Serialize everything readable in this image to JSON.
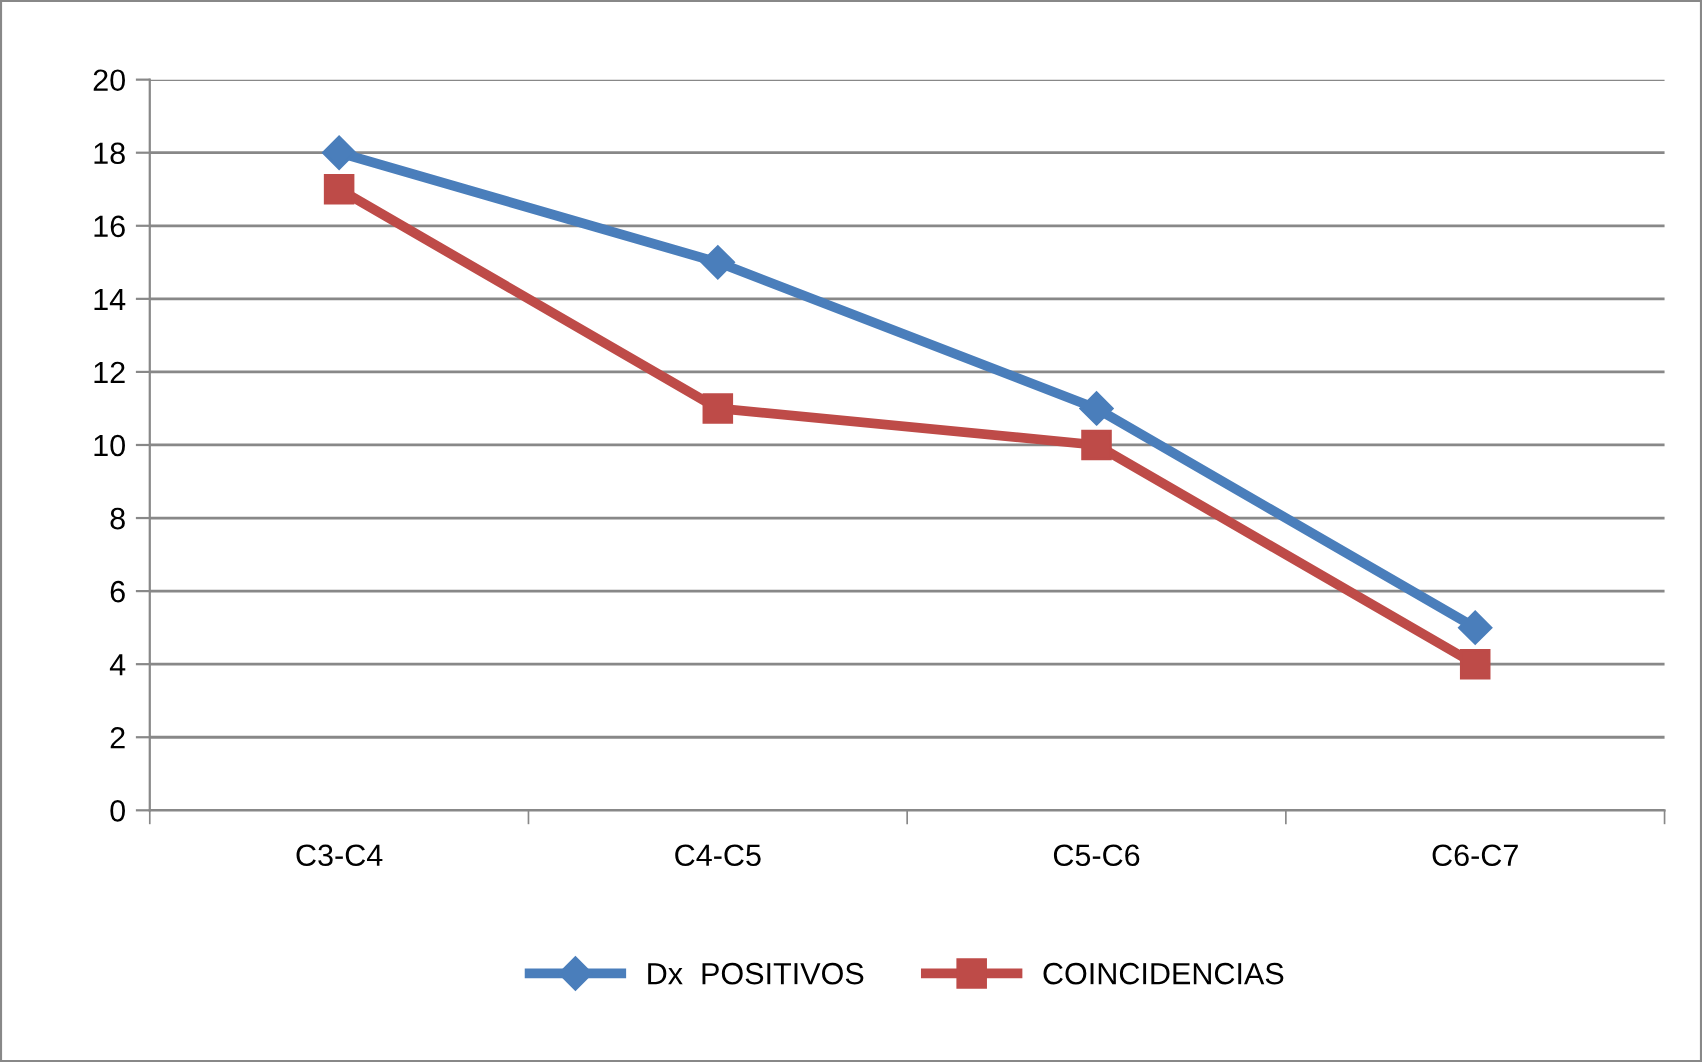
{
  "chart_data": {
    "type": "line",
    "categories": [
      "C3-C4",
      "C4-C5",
      "C5-C6",
      "C6-C7"
    ],
    "series": [
      {
        "name": "Dx  POSITIVOS",
        "color": "#4a7ebb",
        "marker": "diamond",
        "values": [
          18,
          15,
          11,
          5
        ]
      },
      {
        "name": "COINCIDENCIAS",
        "color": "#be4b48",
        "marker": "square",
        "values": [
          17,
          11,
          10,
          4
        ]
      }
    ],
    "ylim": [
      0,
      20
    ],
    "yticks": [
      0,
      2,
      4,
      6,
      8,
      10,
      12,
      14,
      16,
      18,
      20
    ],
    "grid": "y",
    "legend": "bottom",
    "line_style": "solid"
  }
}
